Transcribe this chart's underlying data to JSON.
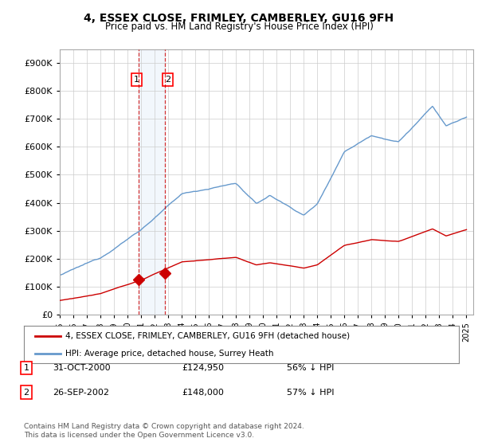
{
  "title": "4, ESSEX CLOSE, FRIMLEY, CAMBERLEY, GU16 9FH",
  "subtitle": "Price paid vs. HM Land Registry's House Price Index (HPI)",
  "ylim": [
    0,
    950000
  ],
  "yticks": [
    0,
    100000,
    200000,
    300000,
    400000,
    500000,
    600000,
    700000,
    800000,
    900000
  ],
  "sale1_date_num": 2000.83,
  "sale1_price": 124950,
  "sale2_date_num": 2002.73,
  "sale2_price": 148000,
  "transaction_color": "#cc0000",
  "hpi_color": "#6699cc",
  "background_color": "#ffffff",
  "grid_color": "#cccccc",
  "legend_label_red": "4, ESSEX CLOSE, FRIMLEY, CAMBERLEY, GU16 9FH (detached house)",
  "legend_label_blue": "HPI: Average price, detached house, Surrey Heath",
  "table_rows": [
    {
      "num": "1",
      "date": "31-OCT-2000",
      "price": "£124,950",
      "hpi": "56% ↓ HPI"
    },
    {
      "num": "2",
      "date": "26-SEP-2002",
      "price": "£148,000",
      "hpi": "57% ↓ HPI"
    }
  ],
  "footnote1": "Contains HM Land Registry data © Crown copyright and database right 2024.",
  "footnote2": "This data is licensed under the Open Government Licence v3.0.",
  "xmin": 1995.0,
  "xmax": 2025.5
}
